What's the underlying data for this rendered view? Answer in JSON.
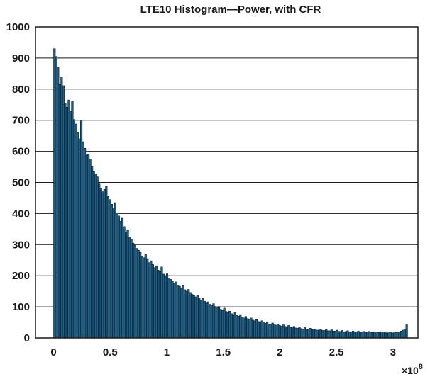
{
  "chart_data": {
    "type": "bar",
    "title": "LTE10 Histogram—Power, with CFR",
    "xlabel": "",
    "ylabel": "",
    "x_multiplier": "×10",
    "x_multiplier_exp": "8",
    "xlim": [
      -0.16,
      3.22
    ],
    "ylim": [
      0,
      1000
    ],
    "xticks": [
      0,
      0.5,
      1,
      1.5,
      2,
      2.5,
      3
    ],
    "xtick_labels": [
      "0",
      "0.5",
      "1",
      "1.5",
      "2",
      "2.5",
      "3"
    ],
    "yticks": [
      0,
      100,
      200,
      300,
      400,
      500,
      600,
      700,
      800,
      900,
      1000
    ],
    "ytick_labels": [
      "0",
      "100",
      "200",
      "300",
      "400",
      "500",
      "600",
      "700",
      "800",
      "900",
      "1000"
    ],
    "grid": "horizontal",
    "bin_start": 0,
    "bin_width": 0.0158,
    "bar_color": "#1f5f86",
    "values": [
      930,
      905,
      870,
      815,
      838,
      811,
      755,
      742,
      765,
      728,
      762,
      702,
      688,
      662,
      640,
      700,
      631,
      610,
      588,
      590,
      575,
      552,
      535,
      528,
      518,
      495,
      482,
      470,
      478,
      487,
      455,
      445,
      430,
      418,
      435,
      402,
      392,
      375,
      385,
      358,
      340,
      348,
      325,
      318,
      305,
      298,
      288,
      282,
      275,
      262,
      258,
      268,
      255,
      242,
      248,
      236,
      226,
      232,
      218,
      214,
      228,
      205,
      198,
      206,
      192,
      188,
      183,
      176,
      180,
      170,
      166,
      160,
      168,
      155,
      150,
      156,
      146,
      140,
      136,
      132,
      138,
      128,
      122,
      127,
      118,
      112,
      116,
      108,
      104,
      110,
      101,
      97,
      101,
      92,
      88,
      96,
      85,
      82,
      86,
      78,
      75,
      81,
      72,
      70,
      75,
      67,
      64,
      69,
      62,
      60,
      64,
      57,
      55,
      59,
      53,
      51,
      55,
      49,
      47,
      52,
      45,
      44,
      48,
      42,
      41,
      45,
      40,
      38,
      42,
      37,
      36,
      40,
      34,
      33,
      37,
      32,
      31,
      35,
      30,
      29,
      33,
      28,
      28,
      31,
      27,
      26,
      29,
      25,
      25,
      28,
      24,
      24,
      27,
      23,
      23,
      26,
      22,
      22,
      25,
      21,
      21,
      24,
      20,
      21,
      23,
      20,
      20,
      22,
      19,
      20,
      22,
      19,
      19,
      21,
      18,
      19,
      21,
      18,
      18,
      20,
      17,
      18,
      20,
      17,
      17,
      19,
      16,
      17,
      19,
      16,
      17,
      18,
      17,
      19,
      22,
      25,
      28,
      42
    ]
  }
}
